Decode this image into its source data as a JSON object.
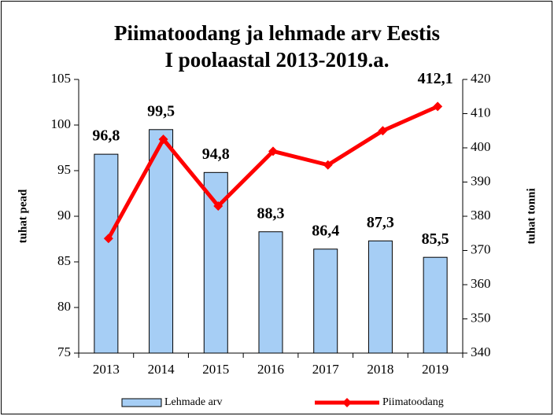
{
  "chart_data": {
    "type": "bar_line",
    "title": [
      "Piimatoodang  ja lehmade arv Eestis",
      "I poolaastal 2013-2019.a."
    ],
    "y_label": "tuhat pead",
    "y2_label": "tuhat tonni",
    "categories": [
      "2013",
      "2014",
      "2015",
      "2016",
      "2017",
      "2018",
      "2019"
    ],
    "series": [
      {
        "name": "Lehmade arv",
        "type": "bar",
        "color": "#a6cef5",
        "values": [
          96.8,
          99.5,
          94.8,
          88.3,
          86.4,
          87.3,
          85.5
        ],
        "value_labels": [
          "96,8",
          "99,5",
          "94,8",
          "88,3",
          "86,4",
          "87,3",
          "85,5"
        ]
      },
      {
        "name": "Piimatoodang",
        "type": "line",
        "axis": "y2",
        "color": "#ff0000",
        "values": [
          373.5,
          402.5,
          383,
          399,
          395,
          405,
          412.1
        ],
        "value_labels": [
          null,
          null,
          null,
          null,
          null,
          null,
          "412,1"
        ]
      }
    ],
    "ylim": [
      75,
      105
    ],
    "yticks": [
      75,
      80,
      85,
      90,
      95,
      100,
      105
    ],
    "y2lim": [
      340,
      420
    ],
    "y2ticks": [
      340,
      350,
      360,
      370,
      380,
      390,
      400,
      410,
      420
    ],
    "grid": false,
    "legend": "bottom"
  }
}
